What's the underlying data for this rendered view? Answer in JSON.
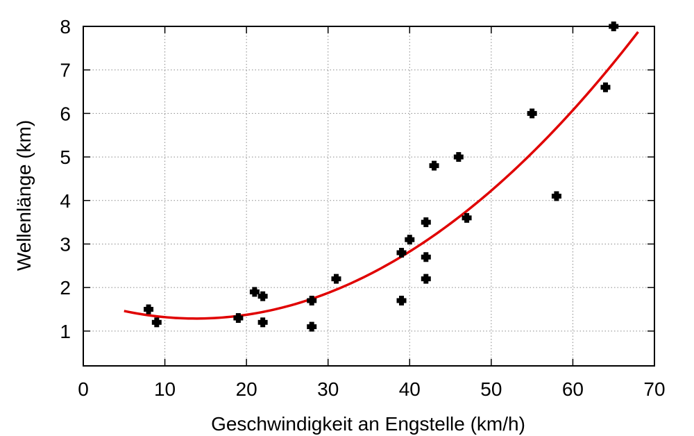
{
  "chart_data": {
    "type": "scatter",
    "title": "",
    "xlabel": "Geschwindigkeit an Engstelle (km/h)",
    "ylabel": "Wellenlänge (km)",
    "xlim": [
      0,
      70
    ],
    "ylim": [
      0.2,
      8
    ],
    "x_ticks": [
      0,
      10,
      20,
      30,
      40,
      50,
      60,
      70
    ],
    "y_ticks": [
      1,
      2,
      3,
      4,
      5,
      6,
      7,
      8
    ],
    "grid": true,
    "points": [
      {
        "x": 8,
        "y": 1.5
      },
      {
        "x": 9,
        "y": 1.2
      },
      {
        "x": 19,
        "y": 1.3
      },
      {
        "x": 21,
        "y": 1.9
      },
      {
        "x": 22,
        "y": 1.8
      },
      {
        "x": 22,
        "y": 1.2
      },
      {
        "x": 28,
        "y": 1.7
      },
      {
        "x": 28,
        "y": 1.1
      },
      {
        "x": 31,
        "y": 2.2
      },
      {
        "x": 39,
        "y": 2.8
      },
      {
        "x": 39,
        "y": 1.7
      },
      {
        "x": 40,
        "y": 3.1
      },
      {
        "x": 42,
        "y": 3.5
      },
      {
        "x": 42,
        "y": 2.7
      },
      {
        "x": 42,
        "y": 2.2
      },
      {
        "x": 43,
        "y": 4.8
      },
      {
        "x": 46,
        "y": 5.0
      },
      {
        "x": 47,
        "y": 3.6
      },
      {
        "x": 55,
        "y": 6.0
      },
      {
        "x": 58,
        "y": 4.1
      },
      {
        "x": 64,
        "y": 6.6
      },
      {
        "x": 65,
        "y": 8.0
      }
    ],
    "fit_curve": {
      "type": "quadratic",
      "color": "#e00000",
      "points": [
        {
          "x": 5,
          "y": 1.43
        },
        {
          "x": 13,
          "y": 1.29
        },
        {
          "x": 20,
          "y": 1.38
        },
        {
          "x": 30,
          "y": 1.95
        },
        {
          "x": 40,
          "y": 2.85
        },
        {
          "x": 50,
          "y": 4.2
        },
        {
          "x": 60,
          "y": 5.9
        },
        {
          "x": 68,
          "y": 8.0
        }
      ]
    },
    "marker_color": "#000000"
  }
}
